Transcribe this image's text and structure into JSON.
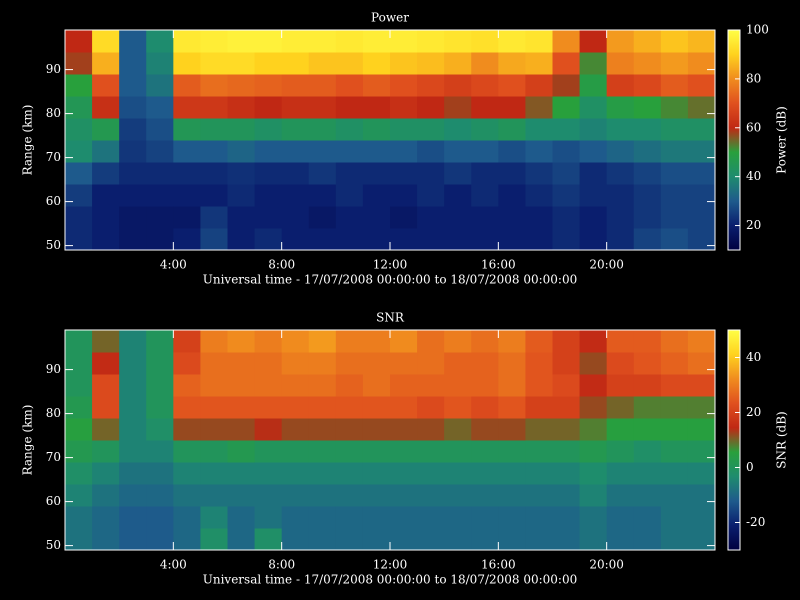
{
  "chart_data": [
    {
      "type": "heatmap",
      "title": "Power",
      "xlabel": "Universal time - 17/07/2008 00:00:00 to 18/07/2008 00:00:00",
      "ylabel": "Range (km)",
      "x": [
        0.5,
        1.5,
        2.5,
        3.5,
        4.5,
        5.5,
        6.5,
        7.5,
        8.5,
        9.5,
        10.5,
        11.5,
        12.5,
        13.5,
        14.5,
        15.5,
        16.5,
        17.5,
        18.5,
        19.5,
        20.5,
        21.5,
        22.5,
        23.5
      ],
      "y": [
        51.5,
        56.5,
        61.5,
        66.5,
        71.5,
        76.5,
        81.5,
        86.5,
        91.5,
        96.5
      ],
      "values": [
        [
          22,
          20,
          18,
          18,
          20,
          26,
          20,
          22,
          20,
          20,
          20,
          20,
          20,
          20,
          20,
          20,
          20,
          20,
          22,
          20,
          22,
          26,
          28,
          26
        ],
        [
          22,
          20,
          18,
          18,
          18,
          24,
          20,
          20,
          20,
          18,
          20,
          20,
          18,
          20,
          20,
          20,
          20,
          20,
          22,
          20,
          22,
          24,
          26,
          26
        ],
        [
          25,
          20,
          20,
          20,
          20,
          20,
          22,
          20,
          20,
          20,
          22,
          20,
          20,
          22,
          20,
          22,
          20,
          22,
          24,
          22,
          22,
          24,
          26,
          26
        ],
        [
          30,
          25,
          22,
          22,
          22,
          22,
          23,
          22,
          22,
          24,
          22,
          22,
          22,
          22,
          24,
          22,
          22,
          24,
          26,
          22,
          24,
          26,
          28,
          28
        ],
        [
          40,
          35,
          24,
          26,
          30,
          30,
          32,
          30,
          30,
          30,
          30,
          30,
          30,
          28,
          30,
          30,
          28,
          30,
          28,
          30,
          32,
          34,
          36,
          36
        ],
        [
          42,
          46,
          25,
          28,
          45,
          44,
          44,
          42,
          44,
          44,
          42,
          44,
          42,
          42,
          40,
          42,
          44,
          40,
          40,
          38,
          40,
          40,
          42,
          42
        ],
        [
          45,
          62,
          28,
          30,
          64,
          64,
          62,
          60,
          62,
          62,
          60,
          60,
          62,
          60,
          58,
          60,
          60,
          56,
          50,
          42,
          48,
          50,
          52,
          54
        ],
        [
          50,
          70,
          30,
          35,
          72,
          75,
          74,
          73,
          72,
          72,
          70,
          72,
          70,
          68,
          66,
          68,
          70,
          66,
          58,
          48,
          66,
          68,
          72,
          70
        ],
        [
          58,
          85,
          30,
          38,
          90,
          92,
          92,
          90,
          90,
          88,
          88,
          90,
          88,
          87,
          85,
          80,
          84,
          85,
          70,
          52,
          78,
          80,
          82,
          80
        ],
        [
          60,
          92,
          30,
          40,
          95,
          96,
          97,
          97,
          96,
          96,
          95,
          96,
          96,
          95,
          94,
          93,
          95,
          94,
          80,
          60,
          82,
          85,
          88,
          86
        ]
      ],
      "xlim": [
        0,
        24
      ],
      "xticks": [
        {
          "value": 4,
          "label": "4:00"
        },
        {
          "value": 8,
          "label": "8:00"
        },
        {
          "value": 12,
          "label": "12:00"
        },
        {
          "value": 16,
          "label": "16:00"
        },
        {
          "value": 20,
          "label": "20:00"
        }
      ],
      "ylim": [
        49,
        99
      ],
      "yticks": [
        50,
        60,
        70,
        80,
        90
      ],
      "colormap": [
        "#000040",
        "#0a1e6e",
        "#1e5a8c",
        "#1e8c6e",
        "#28a03c",
        "#c02814",
        "#e0501e",
        "#f08c1e",
        "#ffd21e",
        "#ffff46"
      ],
      "colorbar": {
        "label": "Power (dB)",
        "lim": [
          10,
          100
        ],
        "ticks": [
          20,
          40,
          60,
          80,
          100
        ]
      }
    },
    {
      "type": "heatmap",
      "title": "SNR",
      "xlabel": "Universal time - 17/07/2008 00:00:00 to 18/07/2008 00:00:00",
      "ylabel": "Range (km)",
      "x": [
        0.5,
        1.5,
        2.5,
        3.5,
        4.5,
        5.5,
        6.5,
        7.5,
        8.5,
        9.5,
        10.5,
        11.5,
        12.5,
        13.5,
        14.5,
        15.5,
        16.5,
        17.5,
        18.5,
        19.5,
        20.5,
        21.5,
        22.5,
        23.5
      ],
      "y": [
        51.5,
        56.5,
        61.5,
        66.5,
        71.5,
        76.5,
        81.5,
        86.5,
        91.5,
        96.5
      ],
      "values": [
        [
          -8,
          -10,
          -12,
          -12,
          -10,
          -2,
          -10,
          -2,
          -10,
          -10,
          -10,
          -10,
          -10,
          -10,
          -10,
          -10,
          -10,
          -10,
          -10,
          -8,
          -10,
          -10,
          -8,
          -8
        ],
        [
          -8,
          -10,
          -12,
          -12,
          -10,
          -5,
          -10,
          -8,
          -10,
          -10,
          -10,
          -10,
          -10,
          -10,
          -10,
          -10,
          -10,
          -10,
          -10,
          -8,
          -10,
          -10,
          -8,
          -8
        ],
        [
          -5,
          -8,
          -10,
          -10,
          -8,
          -8,
          -8,
          -8,
          -8,
          -8,
          -8,
          -8,
          -8,
          -8,
          -8,
          -8,
          -8,
          -8,
          -8,
          -5,
          -8,
          -8,
          -8,
          -8
        ],
        [
          -2,
          -5,
          -8,
          -8,
          -5,
          -5,
          -5,
          -5,
          -5,
          -5,
          -5,
          -5,
          -5,
          -5,
          -5,
          -5,
          -5,
          -5,
          -5,
          -3,
          -5,
          -5,
          -5,
          -5
        ],
        [
          2,
          0,
          -5,
          -5,
          0,
          0,
          2,
          0,
          0,
          0,
          0,
          0,
          0,
          0,
          0,
          0,
          0,
          0,
          0,
          2,
          0,
          -2,
          0,
          0
        ],
        [
          5,
          10,
          -5,
          -2,
          12,
          12,
          12,
          14,
          12,
          12,
          12,
          12,
          12,
          12,
          10,
          12,
          12,
          10,
          10,
          8,
          5,
          5,
          5,
          5
        ],
        [
          2,
          22,
          -5,
          0,
          24,
          24,
          24,
          24,
          24,
          24,
          24,
          24,
          24,
          22,
          24,
          22,
          24,
          20,
          20,
          12,
          10,
          8,
          8,
          8
        ],
        [
          0,
          22,
          -5,
          0,
          26,
          28,
          28,
          28,
          28,
          28,
          26,
          28,
          26,
          26,
          26,
          26,
          28,
          24,
          22,
          15,
          20,
          20,
          22,
          22
        ],
        [
          0,
          15,
          -5,
          0,
          22,
          28,
          28,
          28,
          30,
          30,
          28,
          28,
          28,
          28,
          26,
          26,
          28,
          24,
          20,
          12,
          22,
          24,
          26,
          28
        ],
        [
          0,
          10,
          -5,
          0,
          20,
          30,
          32,
          30,
          32,
          34,
          30,
          30,
          32,
          28,
          30,
          28,
          30,
          25,
          20,
          15,
          25,
          25,
          28,
          30
        ]
      ],
      "xlim": [
        0,
        24
      ],
      "xticks": [
        {
          "value": 4,
          "label": "4:00"
        },
        {
          "value": 8,
          "label": "8:00"
        },
        {
          "value": 12,
          "label": "12:00"
        },
        {
          "value": 16,
          "label": "16:00"
        },
        {
          "value": 20,
          "label": "20:00"
        }
      ],
      "ylim": [
        49,
        99
      ],
      "yticks": [
        50,
        60,
        70,
        80,
        90
      ],
      "colormap": [
        "#000040",
        "#0a1e6e",
        "#1e5a8c",
        "#1e8c6e",
        "#28a03c",
        "#c02814",
        "#e0501e",
        "#f08c1e",
        "#ffd21e",
        "#ffff46"
      ],
      "colorbar": {
        "label": "SNR (dB)",
        "lim": [
          -30,
          50
        ],
        "ticks": [
          -20,
          0,
          20,
          40
        ]
      }
    }
  ]
}
